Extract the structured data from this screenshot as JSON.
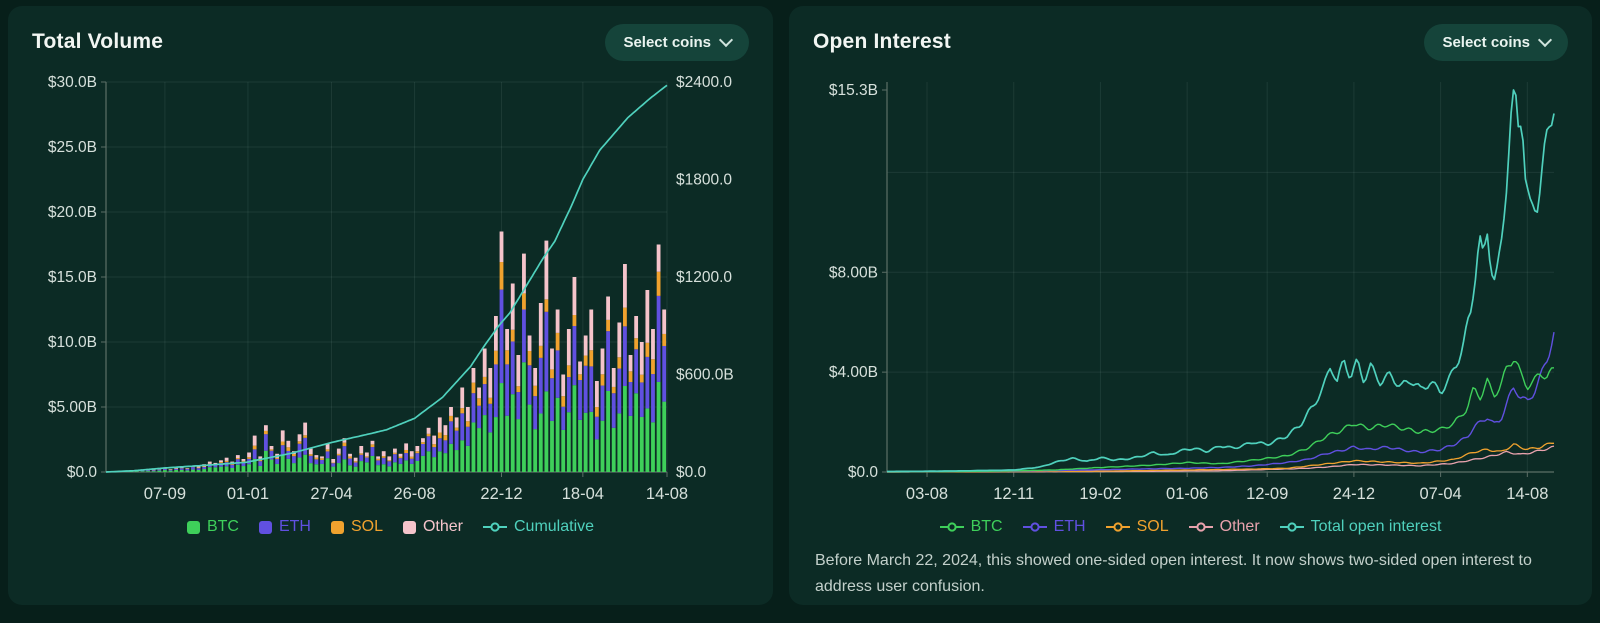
{
  "theme": {
    "page_bg": "#071f1a",
    "panel_bg": "#0c2b25",
    "title_color": "#f2f6f3",
    "axis_text": "#d6e0db",
    "grid": "rgba(173,203,194,0.10)",
    "axis_line": "#5c6f67",
    "button_bg": "#15443a",
    "button_text": "#eaf4f0",
    "note_text": "#c3d0cb",
    "accent_teal": "#4fd1bd"
  },
  "left_panel": {
    "title": "Total Volume",
    "select_button_label": "Select coins",
    "legend": [
      {
        "label": "BTC",
        "color": "#3ecf5a",
        "marker": "square"
      },
      {
        "label": "ETH",
        "color": "#6050e0",
        "marker": "square"
      },
      {
        "label": "SOL",
        "color": "#f0a22e",
        "marker": "square"
      },
      {
        "label": "Other",
        "color": "#f5c4cb",
        "marker": "square"
      },
      {
        "label": "Cumulative",
        "color": "#4fd1bd",
        "marker": "line"
      }
    ]
  },
  "right_panel": {
    "title": "Open Interest",
    "select_button_label": "Select coins",
    "legend": [
      {
        "label": "BTC",
        "color": "#3ecf5a",
        "marker": "line"
      },
      {
        "label": "ETH",
        "color": "#6050e0",
        "marker": "line"
      },
      {
        "label": "SOL",
        "color": "#f0a22e",
        "marker": "line"
      },
      {
        "label": "Other",
        "color": "#e8a2ad",
        "marker": "line"
      },
      {
        "label": "Total open interest",
        "color": "#4fd1bd",
        "marker": "line"
      }
    ],
    "note": "Before March 22, 2024, this showed one-sided open interest. It now shows two-sided open interest to address user confusion."
  },
  "chart_data": [
    {
      "type": "bar",
      "title": "Total Volume",
      "stacked": true,
      "unit": "$B",
      "x_ticks": {
        "labels": [
          "07-09",
          "01-01",
          "27-04",
          "26-08",
          "22-12",
          "18-04",
          "14-08"
        ],
        "fracs": [
          0.105,
          0.253,
          0.402,
          0.55,
          0.705,
          0.85,
          1.0
        ]
      },
      "y_left": {
        "max": 30,
        "label_ticks": [
          {
            "value": 0,
            "label": "$0.0"
          },
          {
            "value": 5,
            "label": "$5.00B"
          },
          {
            "value": 10,
            "label": "$10.0B"
          },
          {
            "value": 15,
            "label": "$15.0B"
          },
          {
            "value": 20,
            "label": "$20.0B"
          },
          {
            "value": 25,
            "label": "$25.0B"
          },
          {
            "value": 30,
            "label": "$30.0B"
          }
        ]
      },
      "y_right": {
        "max": 2400,
        "label_ticks": [
          {
            "value": 0,
            "label": "$0.0"
          },
          {
            "value": 600,
            "label": "$600.0B"
          },
          {
            "value": 1200,
            "label": "$1200.0"
          },
          {
            "value": 1800,
            "label": "$1800.0"
          },
          {
            "value": 2400,
            "label": "$2400.0"
          }
        ]
      },
      "bars": {
        "order": [
          "BTC",
          "ETH",
          "SOL",
          "Other"
        ],
        "shares": {
          "BTC": 0.42,
          "ETH": 0.3,
          "SOL": 0.08,
          "Other": 0.2
        },
        "colors": {
          "BTC": "#3ecf5a",
          "ETH": "#6050e0",
          "SOL": "#f0a22e",
          "Other": "#f5c4cb"
        },
        "totals": [
          0.05,
          0.08,
          0.06,
          0.1,
          0.12,
          0.09,
          0.15,
          0.2,
          0.18,
          0.25,
          0.3,
          0.22,
          0.35,
          0.4,
          0.3,
          0.5,
          0.45,
          0.6,
          0.8,
          0.7,
          0.9,
          1.1,
          0.8,
          1.3,
          1.0,
          1.5,
          2.8,
          1.2,
          3.6,
          2.0,
          1.4,
          3.2,
          2.4,
          1.6,
          2.9,
          3.8,
          1.8,
          1.3,
          1.2,
          2.2,
          1.0,
          1.8,
          2.6,
          1.4,
          1.1,
          2.0,
          1.5,
          2.4,
          1.2,
          1.6,
          1.2,
          1.8,
          1.4,
          2.2,
          1.6,
          2.0,
          2.6,
          3.4,
          2.8,
          4.2,
          3.6,
          5.0,
          4.2,
          6.5,
          5.0,
          8.0,
          6.5,
          9.5,
          8.0,
          12.0,
          18.5,
          11.0,
          14.5,
          9.0,
          16.8,
          10.5,
          8.0,
          13.0,
          17.8,
          9.5,
          12.5,
          7.5,
          11.0,
          15.0,
          8.5,
          10.5,
          12.5,
          7.0,
          9.5,
          13.5,
          8.0,
          11.5,
          16.0,
          9.0,
          12.0,
          10.0,
          14.0,
          11.0,
          17.5,
          12.5
        ]
      },
      "cumulative": {
        "name": "Cumulative",
        "color": "#4fd1bd",
        "axis": "right",
        "x_frac": [
          0,
          0.05,
          0.105,
          0.18,
          0.25,
          0.33,
          0.4,
          0.47,
          0.5,
          0.55,
          0.6,
          0.65,
          0.675,
          0.7,
          0.72,
          0.75,
          0.78,
          0.8,
          0.83,
          0.85,
          0.88,
          0.9,
          0.93,
          0.95,
          0.97,
          1.0
        ],
        "values": [
          0,
          8,
          25,
          42,
          60,
          115,
          180,
          235,
          260,
          330,
          460,
          650,
          780,
          900,
          980,
          1150,
          1320,
          1420,
          1640,
          1800,
          1980,
          2060,
          2180,
          2240,
          2300,
          2380
        ]
      }
    },
    {
      "type": "line",
      "title": "Open Interest",
      "unit": "$B",
      "x_ticks": {
        "labels": [
          "03-08",
          "12-11",
          "19-02",
          "01-06",
          "12-09",
          "24-12",
          "07-04",
          "14-08"
        ],
        "fracs": [
          0.06,
          0.19,
          0.32,
          0.45,
          0.57,
          0.7,
          0.83,
          0.96
        ]
      },
      "y": {
        "max": 15.3,
        "grid_values": [
          4,
          8,
          12
        ],
        "label_ticks": [
          {
            "value": 0,
            "label": "$0.0"
          },
          {
            "value": 4,
            "label": "$4.00B"
          },
          {
            "value": 8,
            "label": "$8.00B"
          },
          {
            "value": 15.3,
            "label": "$15.3B"
          }
        ]
      },
      "series": [
        {
          "name": "Other",
          "color": "#e8a2ad",
          "width": 1.3,
          "x_frac": [
            0,
            0.35,
            0.5,
            0.6,
            0.63,
            0.66,
            0.7,
            0.75,
            0.8,
            0.85,
            0.88,
            0.9,
            0.93,
            0.95,
            0.97,
            1.0
          ],
          "values": [
            0,
            0.02,
            0.05,
            0.12,
            0.15,
            0.2,
            0.3,
            0.28,
            0.25,
            0.35,
            0.5,
            0.6,
            0.8,
            0.7,
            0.8,
            1.0
          ]
        },
        {
          "name": "SOL",
          "color": "#f0a22e",
          "width": 1.3,
          "x_frac": [
            0,
            0.3,
            0.45,
            0.55,
            0.6,
            0.65,
            0.7,
            0.75,
            0.8,
            0.85,
            0.88,
            0.9,
            0.92,
            0.94,
            0.96,
            0.98,
            1.0
          ],
          "values": [
            0,
            0.03,
            0.08,
            0.12,
            0.15,
            0.3,
            0.45,
            0.4,
            0.35,
            0.5,
            0.8,
            0.9,
            0.8,
            1.1,
            0.9,
            1.0,
            1.2
          ]
        },
        {
          "name": "ETH",
          "color": "#6050e0",
          "width": 1.4,
          "x_frac": [
            0,
            0.2,
            0.3,
            0.4,
            0.45,
            0.5,
            0.55,
            0.6,
            0.63,
            0.66,
            0.68,
            0.7,
            0.72,
            0.75,
            0.78,
            0.8,
            0.83,
            0.85,
            0.87,
            0.88,
            0.9,
            0.91,
            0.92,
            0.93,
            0.94,
            0.95,
            0.96,
            0.97,
            0.98,
            0.99,
            1.0
          ],
          "values": [
            0.01,
            0.04,
            0.08,
            0.13,
            0.15,
            0.18,
            0.25,
            0.38,
            0.5,
            0.75,
            0.85,
            1.0,
            0.9,
            1.0,
            0.85,
            0.8,
            0.9,
            1.1,
            1.4,
            1.8,
            2.2,
            1.9,
            2.1,
            2.8,
            3.4,
            3.0,
            2.8,
            3.2,
            3.8,
            4.6,
            5.5
          ]
        },
        {
          "name": "BTC",
          "color": "#3ecf5a",
          "width": 1.4,
          "x_frac": [
            0,
            0.15,
            0.25,
            0.32,
            0.4,
            0.45,
            0.5,
            0.55,
            0.6,
            0.63,
            0.66,
            0.68,
            0.7,
            0.72,
            0.75,
            0.78,
            0.8,
            0.83,
            0.85,
            0.87,
            0.88,
            0.89,
            0.9,
            0.91,
            0.92,
            0.93,
            0.94,
            0.95,
            0.96,
            0.97,
            0.98,
            0.99,
            1.0
          ],
          "values": [
            0.01,
            0.03,
            0.08,
            0.18,
            0.28,
            0.38,
            0.33,
            0.48,
            0.65,
            0.95,
            1.45,
            1.65,
            1.95,
            1.75,
            1.9,
            1.7,
            1.6,
            1.7,
            1.95,
            2.55,
            3.35,
            3.0,
            3.6,
            3.1,
            3.4,
            4.25,
            4.6,
            3.9,
            3.45,
            3.6,
            4.0,
            3.8,
            4.1
          ]
        },
        {
          "name": "Total open interest",
          "color": "#4fd1bd",
          "width": 1.7,
          "x_frac": [
            0,
            0.1,
            0.19,
            0.23,
            0.26,
            0.28,
            0.3,
            0.32,
            0.34,
            0.36,
            0.38,
            0.4,
            0.42,
            0.44,
            0.46,
            0.48,
            0.5,
            0.52,
            0.55,
            0.57,
            0.6,
            0.62,
            0.64,
            0.655,
            0.665,
            0.675,
            0.685,
            0.695,
            0.705,
            0.715,
            0.725,
            0.74,
            0.755,
            0.77,
            0.785,
            0.8,
            0.815,
            0.83,
            0.845,
            0.855,
            0.865,
            0.875,
            0.882,
            0.888,
            0.894,
            0.9,
            0.906,
            0.912,
            0.92,
            0.928,
            0.934,
            0.94,
            0.946,
            0.952,
            0.958,
            0.965,
            0.975,
            0.985,
            1.0
          ],
          "values": [
            0.02,
            0.04,
            0.08,
            0.2,
            0.45,
            0.55,
            0.42,
            0.58,
            0.48,
            0.52,
            0.62,
            0.78,
            0.66,
            0.85,
            0.95,
            0.82,
            1.05,
            0.95,
            1.2,
            1.1,
            1.45,
            1.9,
            2.7,
            3.4,
            4.3,
            3.6,
            4.5,
            3.8,
            4.4,
            3.7,
            4.2,
            3.6,
            3.9,
            3.4,
            3.7,
            3.3,
            3.6,
            3.2,
            3.8,
            4.4,
            5.2,
            6.4,
            8.0,
            9.4,
            8.4,
            9.7,
            8.3,
            7.5,
            8.8,
            11.5,
            13.6,
            15.3,
            13.9,
            14.7,
            11.3,
            10.4,
            10.9,
            12.5,
            15.0
          ]
        }
      ]
    }
  ]
}
